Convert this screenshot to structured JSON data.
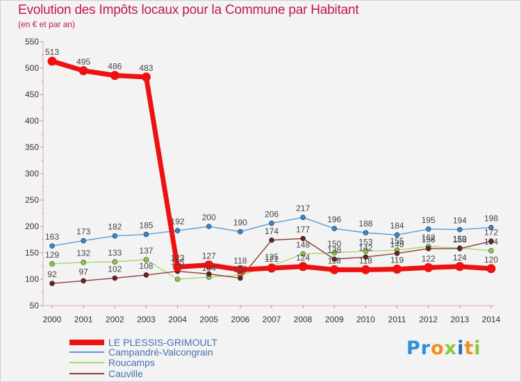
{
  "title": "Evolution des Impôts locaux pour la Commune par Habitant",
  "subtitle": "(en € et par an)",
  "logo": [
    "Pr",
    "o",
    "x",
    "i",
    "t",
    "i"
  ],
  "chart_data": {
    "type": "line",
    "title": "Evolution des Impôts locaux pour la Commune par Habitant",
    "ylabel": "(en € et par an)",
    "x": [
      "2000",
      "2001",
      "2002",
      "2003",
      "2004",
      "2005",
      "2006",
      "2007",
      "2008",
      "2009",
      "2010",
      "2011",
      "2012",
      "2013",
      "2014"
    ],
    "ylim": [
      50,
      550
    ],
    "yticks": [
      50,
      100,
      150,
      200,
      250,
      300,
      350,
      400,
      450,
      500,
      550
    ],
    "grid": false,
    "series": [
      {
        "name": "LE PLESSIS-GRIMOULT",
        "color": "#ee1111",
        "marker": "#ee1111",
        "bold": true,
        "values": [
          513,
          495,
          486,
          483,
          123,
          127,
          118,
          121,
          124,
          118,
          118,
          119,
          122,
          124,
          120
        ],
        "labels": [
          "513",
          "495",
          "486",
          "483",
          "123",
          "127",
          "118",
          "121",
          "124",
          "118",
          "118",
          "119",
          "122",
          "124",
          "120"
        ]
      },
      {
        "name": "Campandré-Valcongrain",
        "color": "#5b9bd5",
        "marker": "#3a85c9",
        "values": [
          163,
          173,
          182,
          185,
          192,
          200,
          190,
          206,
          217,
          196,
          188,
          184,
          195,
          194,
          198
        ],
        "labels": [
          "163",
          "173",
          "182",
          "185",
          "192",
          "200",
          "190",
          "206",
          "217",
          "196",
          "188",
          "184",
          "195",
          "194",
          "198"
        ]
      },
      {
        "name": "Roucamps",
        "color": "#a8d86a",
        "marker": "#88c840",
        "values": [
          129,
          132,
          133,
          137,
          100,
          104,
          108,
          125,
          148,
          150,
          153,
          155,
          162,
          159,
          154
        ],
        "labels": [
          "129",
          "132",
          "133",
          "137",
          "",
          "104",
          "",
          "125",
          "148",
          "150",
          "153",
          "155",
          "162",
          "159",
          "154"
        ]
      },
      {
        "name": "Cauville",
        "color": "#8c3a3a",
        "marker": "#6a1e1e",
        "values": [
          92,
          97,
          102,
          108,
          115,
          110,
          102,
          174,
          177,
          138,
          142,
          149,
          158,
          158,
          172
        ],
        "labels": [
          "92",
          "97",
          "102",
          "108",
          "115",
          "",
          "102",
          "174",
          "177",
          "138",
          "142",
          "149",
          "158",
          "158",
          "172"
        ]
      }
    ]
  }
}
